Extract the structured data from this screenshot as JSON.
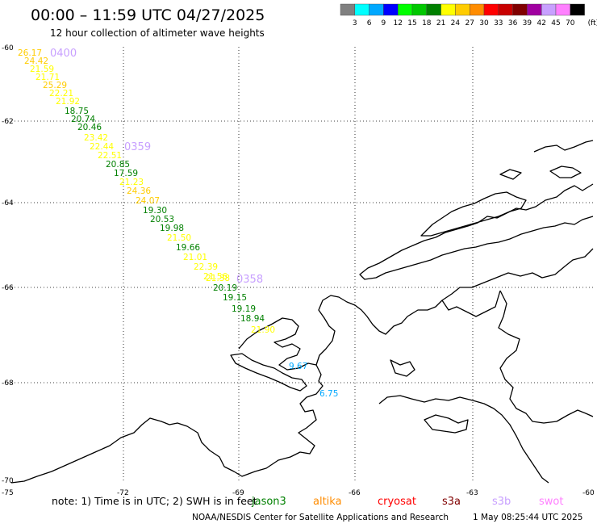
{
  "header": {
    "title": "00:00 – 11:59 UTC 04/27/2025",
    "subtitle": "12 hour collection of altimeter wave heights"
  },
  "scale": {
    "unit": "(ft)",
    "ticks": [
      "3",
      "6",
      "9",
      "12",
      "15",
      "18",
      "21",
      "24",
      "27",
      "30",
      "33",
      "36",
      "39",
      "42",
      "45",
      "70"
    ],
    "colors": [
      "#808080",
      "#00ffff",
      "#00a8ff",
      "#0000ff",
      "#00ff00",
      "#00c800",
      "#008000",
      "#ffff00",
      "#ffcc00",
      "#ff8c00",
      "#ff0000",
      "#c80000",
      "#800000",
      "#a000a0",
      "#c8a0ff",
      "#ff80ff",
      "#000000"
    ]
  },
  "axes": {
    "lat_labels": [
      "-60",
      "-62",
      "-64",
      "-66",
      "-68",
      "-70"
    ],
    "lon_labels": [
      "-75",
      "-72",
      "-69",
      "-66",
      "-63",
      "-60"
    ]
  },
  "track": {
    "times": [
      "0400",
      "0359",
      "0358"
    ],
    "time_color": "#c8a0ff",
    "values": [
      {
        "v": "26.17",
        "c": "#ffcc00"
      },
      {
        "v": "24.42",
        "c": "#ffcc00"
      },
      {
        "v": "21.59",
        "c": "#ffff00"
      },
      {
        "v": "21.71",
        "c": "#ffff00"
      },
      {
        "v": "25.29",
        "c": "#ffcc00"
      },
      {
        "v": "22.21",
        "c": "#ffff00"
      },
      {
        "v": "21.92",
        "c": "#ffff00"
      },
      {
        "v": "18.75",
        "c": "#008000"
      },
      {
        "v": "20.74",
        "c": "#008000"
      },
      {
        "v": "20.46",
        "c": "#008000"
      },
      {
        "v": "23.42",
        "c": "#ffff00"
      },
      {
        "v": "22.44",
        "c": "#ffff00"
      },
      {
        "v": "22.51",
        "c": "#ffff00"
      },
      {
        "v": "20.85",
        "c": "#008000"
      },
      {
        "v": "17.59",
        "c": "#008000"
      },
      {
        "v": "21.23",
        "c": "#ffff00"
      },
      {
        "v": "24.36",
        "c": "#ffcc00"
      },
      {
        "v": "24.07",
        "c": "#ffcc00"
      },
      {
        "v": "19.30",
        "c": "#008000"
      },
      {
        "v": "20.53",
        "c": "#008000"
      },
      {
        "v": "19.98",
        "c": "#008000"
      },
      {
        "v": "21.50",
        "c": "#ffff00"
      },
      {
        "v": "19.66",
        "c": "#008000"
      },
      {
        "v": "21.01",
        "c": "#ffff00"
      },
      {
        "v": "22.39",
        "c": "#ffff00"
      },
      {
        "v": "21.56",
        "c": "#ffff00"
      },
      {
        "v": "21.38",
        "c": "#ffff00"
      },
      {
        "v": "20.19",
        "c": "#008000"
      },
      {
        "v": "19.15",
        "c": "#008000"
      },
      {
        "v": "19.19",
        "c": "#008000"
      },
      {
        "v": "18.94",
        "c": "#008000"
      },
      {
        "v": "21.90",
        "c": "#ffff00"
      },
      {
        "v": "9.67",
        "c": "#00a8ff"
      },
      {
        "v": "6.75",
        "c": "#00a8ff"
      }
    ]
  },
  "footer": {
    "note_prefix": "note:  1) Time is in UTC; 2) SWH is in feet",
    "satellites": [
      {
        "name": "jason3",
        "color": "#008000"
      },
      {
        "name": "altika",
        "color": "#ff8c00"
      },
      {
        "name": "cryosat",
        "color": "#ff0000"
      },
      {
        "name": "s3a",
        "color": "#800000"
      },
      {
        "name": "s3b",
        "color": "#c8a0ff"
      },
      {
        "name": "swot",
        "color": "#ff80ff"
      }
    ],
    "credit": "NOAA/NESDIS Center for Satellite Applications and Research",
    "timestamp": "1 May 08:25:44 UTC 2025"
  }
}
